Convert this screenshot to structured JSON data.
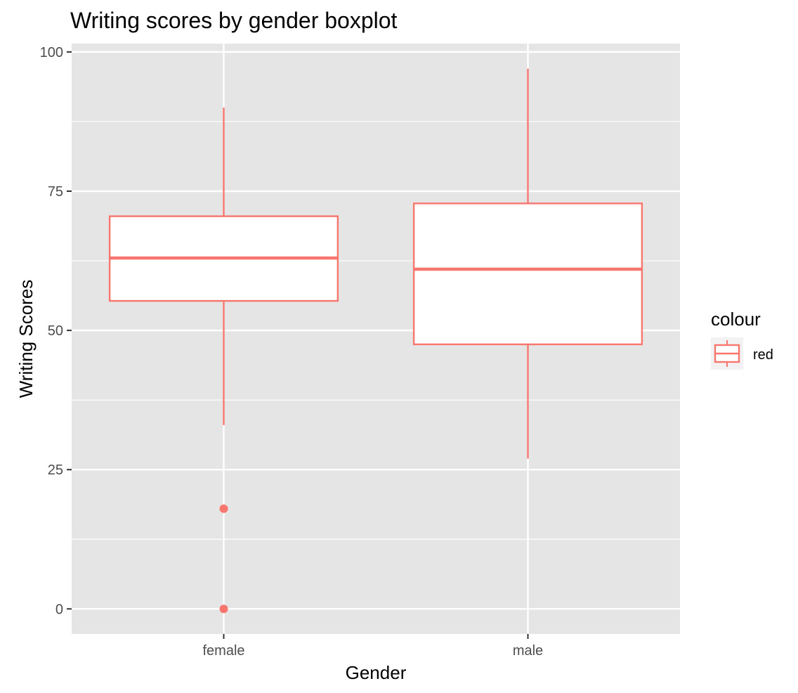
{
  "chart_data": {
    "type": "boxplot",
    "title": "Writing scores by gender boxplot",
    "xlabel": "Gender",
    "ylabel": "Writing Scores",
    "categories": [
      "female",
      "male"
    ],
    "ylim": [
      -4.5,
      101.5
    ],
    "y_ticks": [
      0,
      25,
      50,
      75,
      100
    ],
    "y_minor_ticks": [
      12.5,
      37.5,
      62.5,
      87.5
    ],
    "boxes": [
      {
        "category": "female",
        "lower_whisker": 33,
        "q1": 55.3,
        "median": 63,
        "q3": 70.5,
        "upper_whisker": 90,
        "outliers": [
          18,
          0
        ]
      },
      {
        "category": "male",
        "lower_whisker": 27,
        "q1": 47.5,
        "median": 61,
        "q3": 72.8,
        "upper_whisker": 97,
        "outliers": []
      }
    ],
    "grid": true,
    "legend": {
      "title": "colour",
      "entries": [
        "red"
      ],
      "placement": "right"
    },
    "colors": {
      "box_stroke": "#F8766D",
      "box_fill": "#FFFFFF",
      "panel": "#E5E5E5",
      "grid": "#FFFFFF"
    }
  }
}
